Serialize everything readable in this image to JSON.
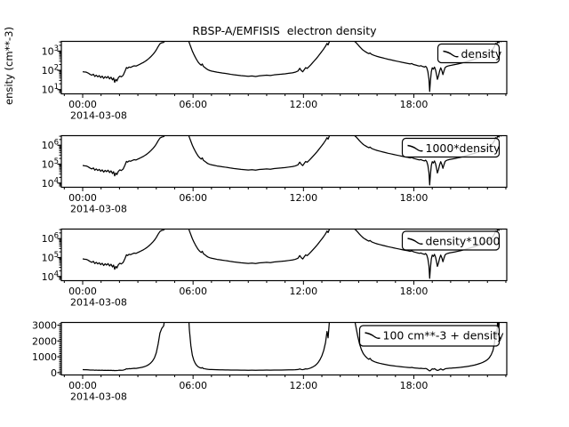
{
  "title": "RBSP-A/EMFISIS  electron density",
  "ylabel_visible": "ensity (cm**-3)",
  "colors": {
    "line": "#000000",
    "frame": "#000000",
    "background": "#ffffff"
  },
  "chart_data": {
    "type": "line",
    "title": "RBSP-A/EMFISIS  electron density",
    "ylabel": "ensity (cm**-3)",
    "x_axis": {
      "major_tick_labels": [
        "00:00",
        "06:00",
        "12:00",
        "18:00"
      ],
      "major_tick_hours": [
        0,
        6,
        12,
        18
      ],
      "minor_step_hours": 1,
      "date_label": "2014-03-08",
      "xlim_hours": [
        -1.16,
        23.05
      ]
    },
    "panels": [
      {
        "legend": "density",
        "yscale": "log",
        "ylim": [
          6,
          3200
        ],
        "yticks": [
          {
            "v": 10,
            "label": "10^1"
          },
          {
            "v": 100,
            "label": "10^2"
          },
          {
            "v": 1000,
            "label": "10^3"
          }
        ],
        "mult": 1,
        "add": 0
      },
      {
        "legend": "1000*density",
        "yscale": "log",
        "ylim": [
          6000,
          3200000
        ],
        "yticks": [
          {
            "v": 10000,
            "label": "10^4"
          },
          {
            "v": 100000,
            "label": "10^5"
          },
          {
            "v": 1000000,
            "label": "10^6"
          }
        ],
        "mult": 1000,
        "add": 0
      },
      {
        "legend": "density*1000",
        "yscale": "log",
        "ylim": [
          6000,
          3200000
        ],
        "yticks": [
          {
            "v": 10000,
            "label": "10^4"
          },
          {
            "v": 100000,
            "label": "10^5"
          },
          {
            "v": 1000000,
            "label": "10^6"
          }
        ],
        "mult": 1000,
        "add": 0
      },
      {
        "legend": "100 cm**-3 + density",
        "yscale": "linear",
        "ylim": [
          -150,
          3170
        ],
        "yticks": [
          {
            "v": 0,
            "label": "0"
          },
          {
            "v": 1000,
            "label": "1000"
          },
          {
            "v": 2000,
            "label": "2000"
          },
          {
            "v": 3000,
            "label": "3000"
          }
        ],
        "minor_step": 100,
        "mult": 1,
        "add": 100
      }
    ],
    "x_hours": [
      0.0,
      0.1,
      0.2,
      0.3,
      0.4,
      0.5,
      0.58,
      0.66,
      0.74,
      0.82,
      0.9,
      0.98,
      1.06,
      1.14,
      1.22,
      1.3,
      1.38,
      1.46,
      1.54,
      1.62,
      1.68,
      1.74,
      1.8,
      1.86,
      1.94,
      2.02,
      2.1,
      2.2,
      2.3,
      2.38,
      2.44,
      2.52,
      2.6,
      2.7,
      2.8,
      2.9,
      3.0,
      3.1,
      3.2,
      3.3,
      3.4,
      3.5,
      3.6,
      3.7,
      3.8,
      3.9,
      4.0,
      4.1,
      4.2,
      4.3,
      4.4,
      4.5,
      4.65,
      4.9,
      5.2,
      5.5,
      5.65,
      5.72,
      5.8,
      5.88,
      5.96,
      6.04,
      6.12,
      6.2,
      6.28,
      6.36,
      6.44,
      6.5,
      6.56,
      6.64,
      6.72,
      6.8,
      6.9,
      7.0,
      7.15,
      7.3,
      7.45,
      7.6,
      7.75,
      7.9,
      8.05,
      8.2,
      8.4,
      8.6,
      8.8,
      9.0,
      9.2,
      9.4,
      9.6,
      9.8,
      10.0,
      10.2,
      10.4,
      10.6,
      10.8,
      11.0,
      11.2,
      11.4,
      11.55,
      11.7,
      11.8,
      11.88,
      11.96,
      12.04,
      12.12,
      12.2,
      12.3,
      12.4,
      12.5,
      12.6,
      12.7,
      12.8,
      12.9,
      13.0,
      13.1,
      13.2,
      13.28,
      13.34,
      13.42,
      13.5,
      13.7,
      14.0,
      14.3,
      14.55,
      14.65,
      14.75,
      14.85,
      14.95,
      15.05,
      15.15,
      15.25,
      15.35,
      15.45,
      15.55,
      15.62,
      15.7,
      15.8,
      15.9,
      16.0,
      16.15,
      16.3,
      16.45,
      16.6,
      16.75,
      16.9,
      17.05,
      17.2,
      17.35,
      17.5,
      17.65,
      17.8,
      17.88,
      18.0,
      18.1,
      18.2,
      18.3,
      18.38,
      18.48,
      18.58,
      18.64,
      18.7,
      18.76,
      18.82,
      18.86,
      18.9,
      18.95,
      19.0,
      19.06,
      19.12,
      19.18,
      19.24,
      19.28,
      19.34,
      19.4,
      19.46,
      19.52,
      19.58,
      19.64,
      19.7,
      19.78,
      19.86,
      19.94,
      20.02,
      20.12,
      20.25,
      20.4,
      20.55,
      20.7,
      20.85,
      21.0,
      21.15,
      21.3,
      21.45,
      21.6,
      21.75,
      21.9,
      22.0,
      22.1,
      22.2,
      22.3,
      22.38,
      22.44,
      22.5,
      22.56,
      22.62,
      22.68,
      22.74,
      22.8,
      22.9,
      23.0
    ],
    "density_cm3": [
      85,
      82,
      80,
      72,
      62,
      56,
      63,
      48,
      56,
      46,
      53,
      42,
      50,
      38,
      47,
      40,
      48,
      36,
      44,
      32,
      40,
      24,
      34,
      28,
      42,
      50,
      46,
      55,
      90,
      140,
      128,
      148,
      142,
      158,
      172,
      166,
      185,
      205,
      230,
      258,
      295,
      345,
      415,
      510,
      640,
      830,
      1150,
      1700,
      2400,
      2700,
      2850,
      3600,
      7000,
      16000,
      28000,
      22000,
      8000,
      4200,
      2600,
      1600,
      1000,
      680,
      480,
      350,
      265,
      215,
      185,
      215,
      160,
      140,
      122,
      108,
      98,
      92,
      86,
      80,
      76,
      72,
      69,
      66,
      62,
      59,
      56,
      53,
      51,
      49,
      51,
      48,
      52,
      54,
      56,
      54,
      58,
      61,
      63,
      66,
      70,
      74,
      80,
      92,
      128,
      98,
      84,
      108,
      138,
      126,
      155,
      195,
      250,
      320,
      410,
      540,
      720,
      960,
      1300,
      1800,
      2500,
      2100,
      3300,
      5200,
      12000,
      26000,
      30000,
      14000,
      6500,
      3400,
      2800,
      2200,
      1700,
      1350,
      1100,
      950,
      830,
      740,
      800,
      680,
      620,
      570,
      530,
      485,
      445,
      410,
      375,
      350,
      325,
      302,
      282,
      262,
      246,
      230,
      214,
      226,
      198,
      188,
      176,
      166,
      174,
      158,
      148,
      162,
      138,
      88,
      36,
      8,
      28,
      85,
      135,
      115,
      148,
      105,
      55,
      34,
      52,
      92,
      135,
      98,
      60,
      95,
      140,
      158,
      168,
      176,
      182,
      190,
      200,
      215,
      232,
      255,
      280,
      308,
      340,
      378,
      425,
      480,
      550,
      640,
      720,
      840,
      1020,
      1300,
      1750,
      2500,
      2150,
      3300,
      2700,
      3900,
      3100,
      4800,
      6500,
      9000
    ]
  }
}
